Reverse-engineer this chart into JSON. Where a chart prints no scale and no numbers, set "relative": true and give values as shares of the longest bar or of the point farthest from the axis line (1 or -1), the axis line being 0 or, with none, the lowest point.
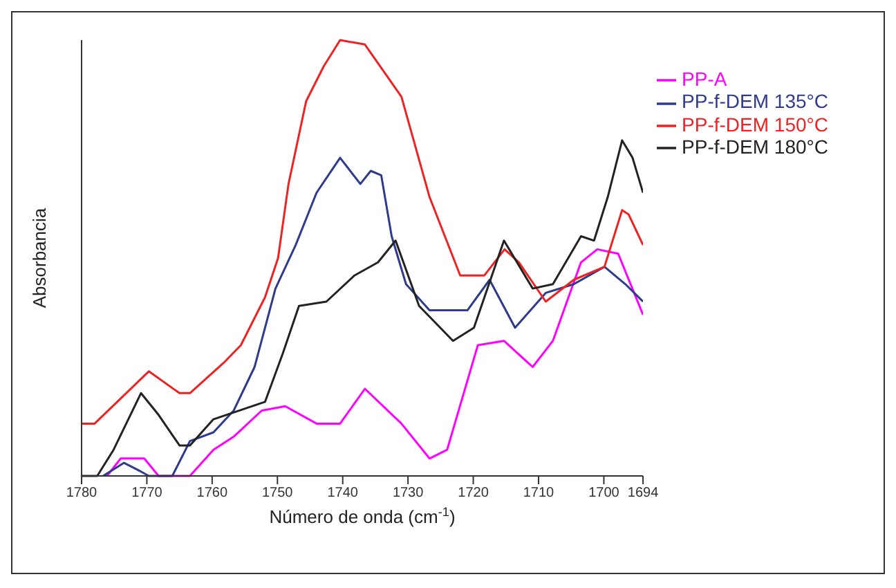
{
  "chart_data": {
    "type": "line",
    "xlabel": "Número de onda (cm$^{-1}$)",
    "ylabel": "Absorbancia",
    "relative": true,
    "xlim": [
      1780,
      1694
    ],
    "xticks": [
      1780,
      1770,
      1760,
      1750,
      1740,
      1730,
      1720,
      1710,
      1700,
      1694
    ],
    "legend": "top right",
    "grid": false,
    "marker": "none",
    "line_style": "solid",
    "series": [
      {
        "name": "PP-A",
        "color": "#ff00ff",
        "x": [
          1776.1,
          1774,
          1770.4,
          1768.2,
          1763.4,
          1759.8,
          1756.7,
          1752.4,
          1748.8,
          1744,
          1740.4,
          1736.6,
          1731,
          1726.7,
          1724,
          1719.3,
          1715.3,
          1710.9,
          1707.8,
          1703.5,
          1701,
          1697.8,
          1694
        ],
        "values": [
          0,
          0.04,
          0.04,
          0,
          0,
          0.06,
          0.09,
          0.15,
          0.16,
          0.12,
          0.12,
          0.2,
          0.12,
          0.04,
          0.06,
          0.3,
          0.31,
          0.25,
          0.31,
          0.49,
          0.52,
          0.51,
          0.37
        ]
      },
      {
        "name": "PP-f-DEM 135°C",
        "color": "#2e3a8c",
        "x": [
          1776.7,
          1773.5,
          1770.9,
          1769.7,
          1766.1,
          1763.4,
          1759.8,
          1756.7,
          1753.5,
          1750.3,
          1747.2,
          1744,
          1740.4,
          1737.3,
          1735.7,
          1734.1,
          1732.5,
          1730.3,
          1726.7,
          1720.9,
          1717.5,
          1713.6,
          1708.9,
          1704.6,
          1699.9,
          1696.7,
          1694
        ],
        "values": [
          0,
          0.03,
          0.01,
          0,
          0,
          0.08,
          0.1,
          0.15,
          0.25,
          0.43,
          0.53,
          0.65,
          0.73,
          0.67,
          0.7,
          0.69,
          0.55,
          0.44,
          0.38,
          0.38,
          0.45,
          0.34,
          0.42,
          0.44,
          0.48,
          0.44,
          0.4
        ]
      },
      {
        "name": "PP-f-DEM 150°C",
        "color": "#ee2222",
        "x": [
          1780,
          1778,
          1769.7,
          1765,
          1763.4,
          1758.2,
          1755.6,
          1751.9,
          1749.9,
          1748.3,
          1745.6,
          1742.9,
          1740.4,
          1736.6,
          1731,
          1726.7,
          1722,
          1718.3,
          1715.2,
          1713,
          1708.9,
          1704.6,
          1699.9,
          1697.2,
          1696.2,
          1694
        ],
        "values": [
          0.12,
          0.12,
          0.24,
          0.19,
          0.19,
          0.26,
          0.3,
          0.41,
          0.5,
          0.67,
          0.86,
          0.94,
          1,
          0.99,
          0.87,
          0.64,
          0.46,
          0.46,
          0.52,
          0.49,
          0.4,
          0.45,
          0.48,
          0.61,
          0.6,
          0.53
        ]
      },
      {
        "name": "PP-f-DEM 180°C",
        "color": "#222222",
        "x": [
          1780,
          1777.6,
          1775.1,
          1770.9,
          1768.2,
          1765,
          1763.4,
          1759.8,
          1751.9,
          1749.2,
          1746.7,
          1742.5,
          1738.2,
          1734.6,
          1731.9,
          1728.3,
          1723.1,
          1719.9,
          1715.3,
          1710.9,
          1707.8,
          1703.5,
          1701.5,
          1699.4,
          1697.2,
          1695.6,
          1694
        ],
        "values": [
          0,
          0,
          0.06,
          0.19,
          0.14,
          0.07,
          0.07,
          0.13,
          0.17,
          0.28,
          0.39,
          0.4,
          0.46,
          0.49,
          0.54,
          0.39,
          0.31,
          0.34,
          0.54,
          0.43,
          0.44,
          0.55,
          0.54,
          0.64,
          0.77,
          0.73,
          0.65
        ]
      }
    ]
  }
}
